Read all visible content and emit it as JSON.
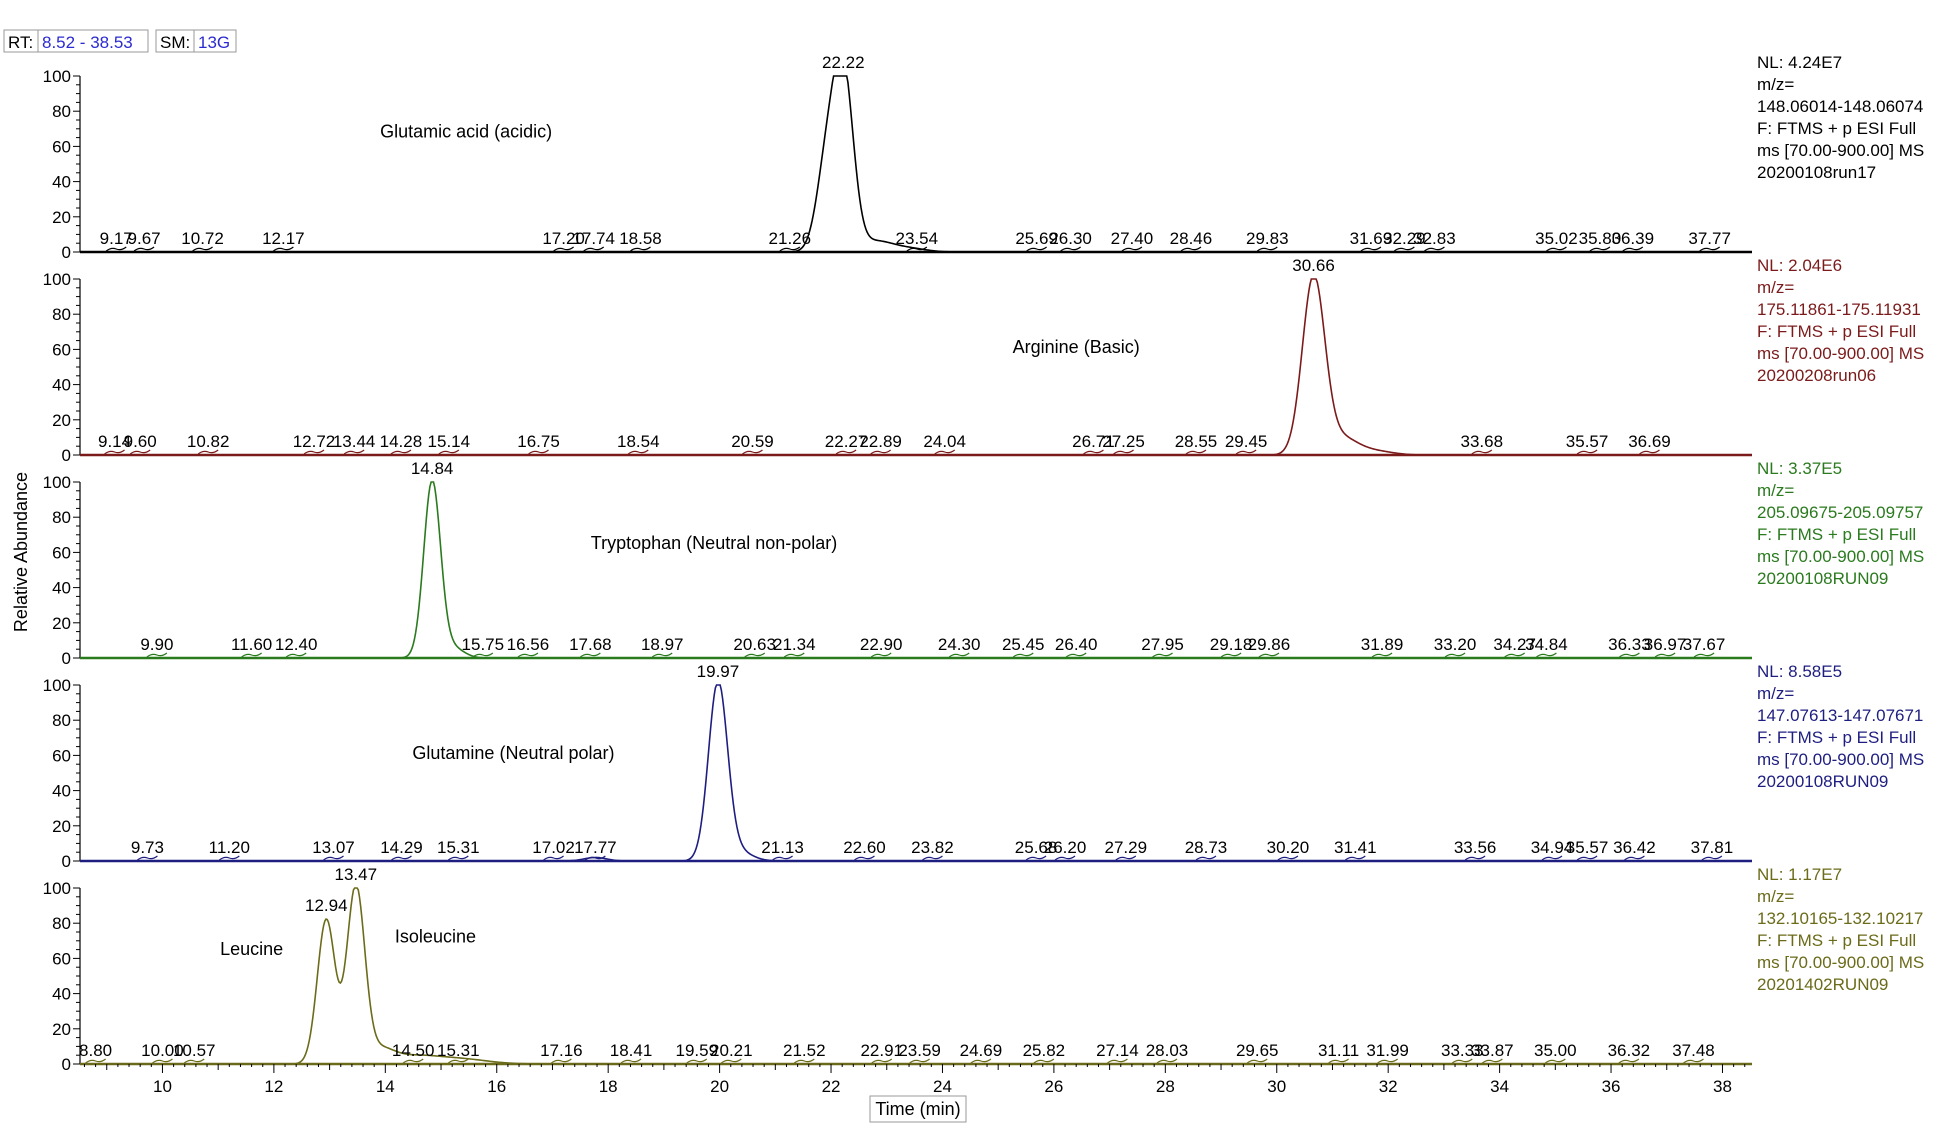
{
  "header": {
    "rt_label": "RT:",
    "rt_value": "8.52 - 38.53",
    "sm_label": "SM:",
    "sm_value": "13G"
  },
  "chart_data": {
    "type": "line",
    "x_range": [
      8.52,
      38.53
    ],
    "xlabel": "Time (min)",
    "ylabel": "Relative Abundance",
    "x_ticks": [
      10,
      12,
      14,
      16,
      18,
      20,
      22,
      24,
      26,
      28,
      30,
      32,
      34,
      36,
      38
    ],
    "y_ticks": [
      0,
      20,
      40,
      60,
      80,
      100
    ],
    "grid": false,
    "panels": [
      {
        "name": "Glutamic acid (acidic)",
        "color": "#000000",
        "info": [
          "NL: 4.24E7",
          "m/z=",
          "148.06014-148.06074",
          "F: FTMS + p ESI Full",
          "ms [70.00-900.00]  MS",
          "20200108run17"
        ],
        "peaks": [
          {
            "rt": 22.22,
            "height": 100,
            "sigma": 0.18
          },
          {
            "rt": 21.92,
            "height": 48,
            "sigma": 0.18
          },
          {
            "rt": 22.8,
            "height": 6,
            "sigma": 0.3
          },
          {
            "rt": 23.4,
            "height": 2,
            "sigma": 0.3
          }
        ],
        "labels": [
          {
            "rt": 9.17,
            "text": "9.17"
          },
          {
            "rt": 9.67,
            "text": "9.67"
          },
          {
            "rt": 10.72,
            "text": "10.72"
          },
          {
            "rt": 12.17,
            "text": "12.17"
          },
          {
            "rt": 17.2,
            "text": "17.20"
          },
          {
            "rt": 17.74,
            "text": "17.74"
          },
          {
            "rt": 18.58,
            "text": "18.58"
          },
          {
            "rt": 21.26,
            "text": "21.26"
          },
          {
            "rt": 22.22,
            "text": "22.22",
            "apex": true
          },
          {
            "rt": 23.54,
            "text": "23.54"
          },
          {
            "rt": 25.69,
            "text": "25.69"
          },
          {
            "rt": 26.3,
            "text": "26.30"
          },
          {
            "rt": 27.4,
            "text": "27.40"
          },
          {
            "rt": 28.46,
            "text": "28.46"
          },
          {
            "rt": 29.83,
            "text": "29.83"
          },
          {
            "rt": 31.69,
            "text": "31.69"
          },
          {
            "rt": 32.29,
            "text": "32.29"
          },
          {
            "rt": 32.83,
            "text": "32.83"
          },
          {
            "rt": 35.02,
            "text": "35.02"
          },
          {
            "rt": 35.8,
            "text": "35.80"
          },
          {
            "rt": 36.39,
            "text": "36.39"
          },
          {
            "rt": 37.77,
            "text": "37.77"
          }
        ],
        "annotations": [
          {
            "text": "Glutamic acid (acidic)",
            "rt": 15.45,
            "y": 65
          }
        ]
      },
      {
        "name": "Arginine (Basic)",
        "color": "#7b1a1a",
        "info": [
          "NL: 2.04E6",
          "m/z=",
          "175.11861-175.11931",
          "F: FTMS + p ESI Full",
          "ms [70.00-900.00]  MS",
          "20200208run06"
        ],
        "peaks": [
          {
            "rt": 30.66,
            "height": 100,
            "sigma": 0.2
          },
          {
            "rt": 31.15,
            "height": 10,
            "sigma": 0.3
          },
          {
            "rt": 31.8,
            "height": 2,
            "sigma": 0.3
          }
        ],
        "labels": [
          {
            "rt": 9.14,
            "text": "9.14"
          },
          {
            "rt": 9.6,
            "text": "9.60"
          },
          {
            "rt": 10.82,
            "text": "10.82"
          },
          {
            "rt": 12.72,
            "text": "12.72"
          },
          {
            "rt": 13.44,
            "text": "13.44"
          },
          {
            "rt": 14.28,
            "text": "14.28"
          },
          {
            "rt": 15.14,
            "text": "15.14"
          },
          {
            "rt": 16.75,
            "text": "16.75"
          },
          {
            "rt": 18.54,
            "text": "18.54"
          },
          {
            "rt": 20.59,
            "text": "20.59"
          },
          {
            "rt": 22.27,
            "text": "22.27"
          },
          {
            "rt": 22.89,
            "text": "22.89"
          },
          {
            "rt": 24.04,
            "text": "24.04"
          },
          {
            "rt": 26.71,
            "text": "26.71"
          },
          {
            "rt": 27.25,
            "text": "27.25"
          },
          {
            "rt": 28.55,
            "text": "28.55"
          },
          {
            "rt": 29.45,
            "text": "29.45"
          },
          {
            "rt": 30.66,
            "text": "30.66",
            "apex": true
          },
          {
            "rt": 33.68,
            "text": "33.68"
          },
          {
            "rt": 35.57,
            "text": "35.57"
          },
          {
            "rt": 36.69,
            "text": "36.69"
          }
        ],
        "annotations": [
          {
            "text": "Arginine (Basic)",
            "rt": 26.4,
            "y": 58
          }
        ]
      },
      {
        "name": "Tryptophan (Neutral non-polar)",
        "color": "#2a7a1e",
        "info": [
          "NL: 3.37E5",
          "m/z=",
          "205.09675-205.09757",
          "F: FTMS + p ESI Full",
          "ms [70.00-900.00]  MS",
          "20200108RUN09"
        ],
        "peaks": [
          {
            "rt": 14.84,
            "height": 100,
            "sigma": 0.15
          },
          {
            "rt": 15.2,
            "height": 6,
            "sigma": 0.2
          }
        ],
        "labels": [
          {
            "rt": 9.9,
            "text": "9.90"
          },
          {
            "rt": 11.6,
            "text": "11.60"
          },
          {
            "rt": 12.4,
            "text": "12.40"
          },
          {
            "rt": 14.84,
            "text": "14.84",
            "apex": true
          },
          {
            "rt": 15.75,
            "text": "15.75"
          },
          {
            "rt": 16.56,
            "text": "16.56"
          },
          {
            "rt": 17.68,
            "text": "17.68"
          },
          {
            "rt": 18.97,
            "text": "18.97"
          },
          {
            "rt": 20.63,
            "text": "20.63"
          },
          {
            "rt": 21.34,
            "text": "21.34"
          },
          {
            "rt": 22.9,
            "text": "22.90"
          },
          {
            "rt": 24.3,
            "text": "24.30"
          },
          {
            "rt": 25.45,
            "text": "25.45"
          },
          {
            "rt": 26.4,
            "text": "26.40"
          },
          {
            "rt": 27.95,
            "text": "27.95"
          },
          {
            "rt": 29.18,
            "text": "29.18"
          },
          {
            "rt": 29.86,
            "text": "29.86"
          },
          {
            "rt": 31.89,
            "text": "31.89"
          },
          {
            "rt": 33.2,
            "text": "33.20"
          },
          {
            "rt": 34.27,
            "text": "34.27"
          },
          {
            "rt": 34.84,
            "text": "34.84"
          },
          {
            "rt": 36.33,
            "text": "36.33"
          },
          {
            "rt": 36.97,
            "text": "36.97"
          },
          {
            "rt": 37.67,
            "text": "37.67"
          }
        ],
        "annotations": [
          {
            "text": "Tryptophan (Neutral non-polar)",
            "rt": 19.9,
            "y": 62
          }
        ]
      },
      {
        "name": "Glutamine (Neutral polar)",
        "color": "#1e1e80",
        "info": [
          "NL: 8.58E5",
          "m/z=",
          "147.07613-147.07671",
          "F: FTMS + p ESI Full",
          "ms [70.00-900.00]  MS",
          "20200108RUN09"
        ],
        "peaks": [
          {
            "rt": 19.97,
            "height": 100,
            "sigma": 0.17
          },
          {
            "rt": 20.3,
            "height": 6,
            "sigma": 0.25
          },
          {
            "rt": 17.77,
            "height": 2,
            "sigma": 0.2
          }
        ],
        "labels": [
          {
            "rt": 9.73,
            "text": "9.73"
          },
          {
            "rt": 11.2,
            "text": "11.20"
          },
          {
            "rt": 13.07,
            "text": "13.07"
          },
          {
            "rt": 14.29,
            "text": "14.29"
          },
          {
            "rt": 15.31,
            "text": "15.31"
          },
          {
            "rt": 17.02,
            "text": "17.02"
          },
          {
            "rt": 17.77,
            "text": "17.77"
          },
          {
            "rt": 19.97,
            "text": "19.97",
            "apex": true
          },
          {
            "rt": 21.13,
            "text": "21.13"
          },
          {
            "rt": 22.6,
            "text": "22.60"
          },
          {
            "rt": 23.82,
            "text": "23.82"
          },
          {
            "rt": 25.68,
            "text": "25.68"
          },
          {
            "rt": 26.2,
            "text": "26.20"
          },
          {
            "rt": 27.29,
            "text": "27.29"
          },
          {
            "rt": 28.73,
            "text": "28.73"
          },
          {
            "rt": 30.2,
            "text": "30.20"
          },
          {
            "rt": 31.41,
            "text": "31.41"
          },
          {
            "rt": 33.56,
            "text": "33.56"
          },
          {
            "rt": 34.94,
            "text": "34.94"
          },
          {
            "rt": 35.57,
            "text": "35.57"
          },
          {
            "rt": 36.42,
            "text": "36.42"
          },
          {
            "rt": 37.81,
            "text": "37.81"
          }
        ],
        "annotations": [
          {
            "text": "Glutamine (Neutral polar)",
            "rt": 16.3,
            "y": 58
          }
        ]
      },
      {
        "name": "Leucine / Isoleucine",
        "color": "#6b6b1a",
        "info": [
          "NL: 1.17E7",
          "m/z=",
          "132.10165-132.10217",
          "F: FTMS + p ESI Full",
          "ms [70.00-900.00]  MS",
          "20201402RUN09"
        ],
        "peaks": [
          {
            "rt": 12.94,
            "height": 82,
            "sigma": 0.16
          },
          {
            "rt": 13.47,
            "height": 100,
            "sigma": 0.16
          },
          {
            "rt": 13.9,
            "height": 8,
            "sigma": 0.25
          },
          {
            "rt": 14.5,
            "height": 4,
            "sigma": 0.4
          },
          {
            "rt": 15.3,
            "height": 3,
            "sigma": 0.5
          }
        ],
        "labels": [
          {
            "rt": 8.8,
            "text": "8.80"
          },
          {
            "rt": 10.0,
            "text": "10.00"
          },
          {
            "rt": 10.57,
            "text": "10.57"
          },
          {
            "rt": 12.94,
            "text": "12.94",
            "apex": true
          },
          {
            "rt": 13.47,
            "text": "13.47",
            "apex": true
          },
          {
            "rt": 14.5,
            "text": "14.50"
          },
          {
            "rt": 15.31,
            "text": "15.31"
          },
          {
            "rt": 17.16,
            "text": "17.16"
          },
          {
            "rt": 18.41,
            "text": "18.41"
          },
          {
            "rt": 19.59,
            "text": "19.59"
          },
          {
            "rt": 20.21,
            "text": "20.21"
          },
          {
            "rt": 21.52,
            "text": "21.52"
          },
          {
            "rt": 22.91,
            "text": "22.91"
          },
          {
            "rt": 23.59,
            "text": "23.59"
          },
          {
            "rt": 24.69,
            "text": "24.69"
          },
          {
            "rt": 25.82,
            "text": "25.82"
          },
          {
            "rt": 27.14,
            "text": "27.14"
          },
          {
            "rt": 28.03,
            "text": "28.03"
          },
          {
            "rt": 29.65,
            "text": "29.65"
          },
          {
            "rt": 31.11,
            "text": "31.11"
          },
          {
            "rt": 31.99,
            "text": "31.99"
          },
          {
            "rt": 33.33,
            "text": "33.33"
          },
          {
            "rt": 33.87,
            "text": "33.87"
          },
          {
            "rt": 35.0,
            "text": "35.00"
          },
          {
            "rt": 36.32,
            "text": "36.32"
          },
          {
            "rt": 37.48,
            "text": "37.48"
          }
        ],
        "annotations": [
          {
            "text": "Leucine",
            "rt": 11.6,
            "y": 62
          },
          {
            "text": "Isoleucine",
            "rt": 14.9,
            "y": 69
          }
        ]
      }
    ]
  }
}
